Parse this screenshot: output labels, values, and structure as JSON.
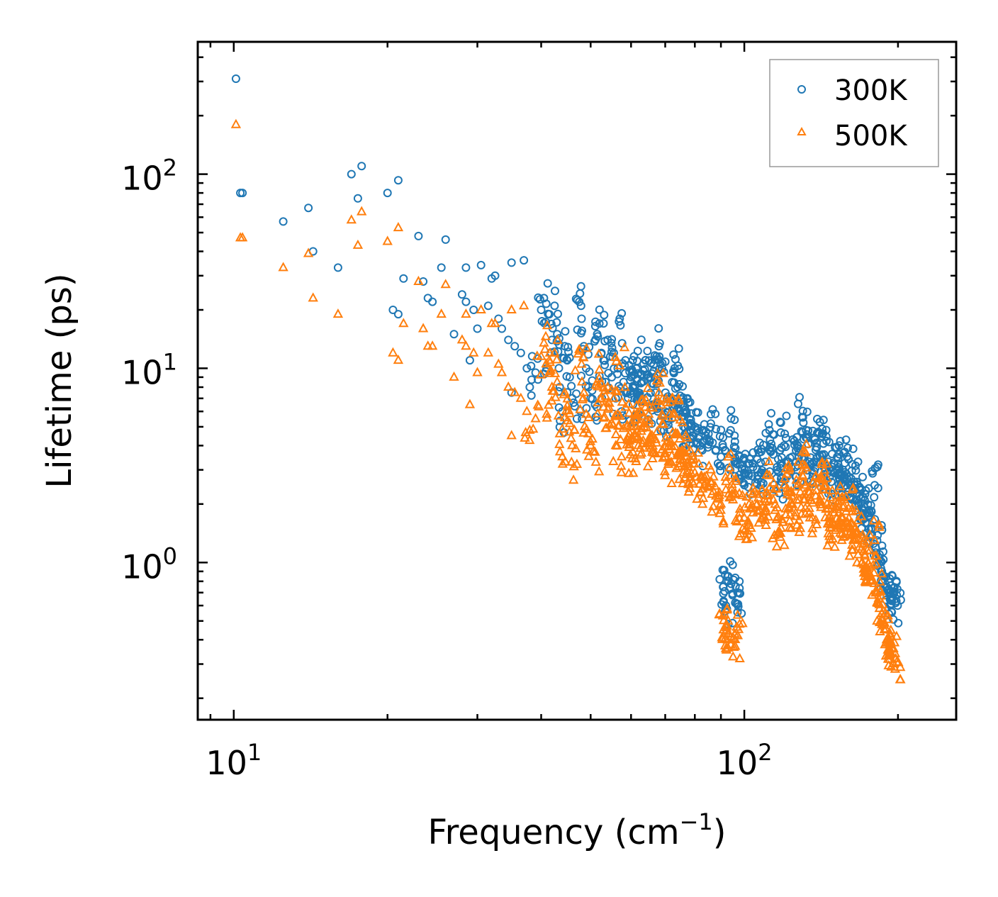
{
  "chart_data": {
    "type": "scatter",
    "xscale": "log",
    "yscale": "log",
    "xlim": [
      8.5,
      260
    ],
    "ylim": [
      0.155,
      480
    ],
    "xlabel": "Frequency (cm",
    "xlabel_sup": "−1",
    "xlabel_close": ")",
    "ylabel": "Lifetime (ps)",
    "x_ticks": [
      {
        "value": 10,
        "base": "10",
        "exp": "1"
      },
      {
        "value": 100,
        "base": "10",
        "exp": "2"
      }
    ],
    "y_ticks": [
      {
        "value": 1,
        "base": "10",
        "exp": "0"
      },
      {
        "value": 10,
        "base": "10",
        "exp": "1"
      },
      {
        "value": 100,
        "base": "10",
        "exp": "2"
      }
    ],
    "legend_position": "top-right",
    "series": [
      {
        "name": "300K",
        "marker": "circle",
        "color": "#1f77b4",
        "points": [
          [
            10.1,
            310
          ],
          [
            10.3,
            80
          ],
          [
            10.4,
            80
          ],
          [
            12.5,
            57
          ],
          [
            14,
            67
          ],
          [
            14.3,
            40
          ],
          [
            16,
            33
          ],
          [
            17,
            100
          ],
          [
            17.5,
            75
          ],
          [
            17.8,
            110
          ],
          [
            20,
            80
          ],
          [
            20.5,
            20
          ],
          [
            21,
            93
          ],
          [
            21,
            19
          ],
          [
            21.5,
            29
          ],
          [
            23,
            48
          ],
          [
            23.5,
            28
          ],
          [
            24,
            23
          ],
          [
            24.5,
            22
          ],
          [
            25.5,
            33
          ],
          [
            26,
            46
          ],
          [
            27,
            15
          ],
          [
            28,
            24
          ],
          [
            28.5,
            22
          ],
          [
            28.5,
            33
          ],
          [
            29,
            11
          ],
          [
            29.5,
            20
          ],
          [
            30,
            16
          ],
          [
            30.5,
            34
          ],
          [
            31.5,
            21
          ],
          [
            32,
            29
          ],
          [
            32.5,
            30
          ],
          [
            33,
            18
          ],
          [
            33.5,
            16
          ],
          [
            34.5,
            14
          ],
          [
            35,
            35
          ],
          [
            35,
            7.5
          ],
          [
            35.5,
            13
          ],
          [
            36.5,
            12
          ],
          [
            37,
            36
          ],
          [
            37.5,
            10
          ],
          [
            38,
            8
          ],
          [
            39,
            9.5
          ],
          [
            40,
            20
          ],
          [
            40.5,
            23
          ],
          [
            41,
            10
          ],
          [
            41.5,
            19
          ],
          [
            42,
            14
          ],
          [
            42.5,
            21
          ],
          [
            43,
            15
          ],
          [
            43.5,
            8
          ],
          [
            44,
            6
          ],
          [
            44.5,
            13
          ],
          [
            45,
            11
          ],
          [
            45.5,
            9
          ],
          [
            46,
            7
          ],
          [
            47,
            5.5
          ],
          [
            47.5,
            22
          ],
          [
            48,
            18
          ],
          [
            48.5,
            13
          ],
          [
            49,
            10
          ],
          [
            49.5,
            8
          ],
          [
            50,
            7
          ],
          [
            51,
            6.5
          ],
          [
            51.5,
            15
          ],
          [
            52,
            17
          ],
          [
            52.5,
            12
          ],
          [
            53,
            11
          ],
          [
            53.5,
            8.5
          ],
          [
            54,
            14
          ],
          [
            55,
            9
          ],
          [
            55.5,
            12
          ],
          [
            56,
            7
          ],
          [
            56.5,
            10
          ],
          [
            57,
            18
          ],
          [
            57.5,
            6
          ],
          [
            58,
            8.5
          ],
          [
            58.5,
            11
          ],
          [
            59,
            7.5
          ],
          [
            60,
            9
          ],
          [
            60.5,
            6.5
          ],
          [
            61,
            8
          ],
          [
            61.5,
            10
          ],
          [
            62,
            7
          ],
          [
            63,
            8.5
          ],
          [
            64,
            11
          ],
          [
            65,
            9
          ],
          [
            66,
            6.5
          ],
          [
            67,
            7.5
          ],
          [
            68,
            13
          ],
          [
            69,
            10
          ],
          [
            70,
            6
          ],
          [
            71,
            5.5
          ],
          [
            72,
            7
          ],
          [
            73,
            10
          ],
          [
            74,
            8
          ],
          [
            75,
            6.5
          ],
          [
            76,
            5
          ],
          [
            77,
            6
          ],
          [
            78,
            5.5
          ],
          [
            79,
            4.5
          ],
          [
            80,
            5
          ],
          [
            82,
            4
          ],
          [
            84,
            4.5
          ],
          [
            86,
            5.2
          ],
          [
            88,
            3.8
          ],
          [
            90,
            3.5
          ],
          [
            91,
            0.75
          ],
          [
            92,
            0.6
          ],
          [
            93,
            0.85
          ],
          [
            94,
            4.8
          ],
          [
            95,
            3.7
          ],
          [
            96,
            0.62
          ],
          [
            97,
            0.7
          ],
          [
            98,
            3.2
          ],
          [
            100,
            2.9
          ],
          [
            102,
            2.8
          ],
          [
            104,
            3.1
          ],
          [
            106,
            3.4
          ],
          [
            108,
            2.9
          ],
          [
            110,
            3.3
          ],
          [
            112,
            4.8
          ],
          [
            114,
            3.6
          ],
          [
            116,
            3.0
          ],
          [
            118,
            2.7
          ],
          [
            120,
            4.6
          ],
          [
            122,
            3.3
          ],
          [
            124,
            3.5
          ],
          [
            126,
            3.1
          ],
          [
            128,
            3.7
          ],
          [
            130,
            5.6
          ],
          [
            132,
            4.4
          ],
          [
            134,
            3.3
          ],
          [
            136,
            2.9
          ],
          [
            138,
            3.8
          ],
          [
            140,
            4.6
          ],
          [
            142,
            4.6
          ],
          [
            144,
            3.0
          ],
          [
            146,
            3.3
          ],
          [
            148,
            2.6
          ],
          [
            150,
            3.2
          ],
          [
            152,
            3.5
          ],
          [
            154,
            2.8
          ],
          [
            156,
            3.0
          ],
          [
            158,
            2.5
          ],
          [
            160,
            3.4
          ],
          [
            162,
            2.7
          ],
          [
            164,
            2.4
          ],
          [
            166,
            2.6
          ],
          [
            168,
            2.2
          ],
          [
            170,
            1.9
          ],
          [
            172,
            2.1
          ],
          [
            174,
            1.6
          ],
          [
            176,
            1.8
          ],
          [
            178,
            1.5
          ],
          [
            180,
            2.5
          ],
          [
            182,
            1.3
          ],
          [
            184,
            1.1
          ],
          [
            186,
            0.9
          ],
          [
            188,
            0.85
          ],
          [
            190,
            0.75
          ],
          [
            192,
            0.7
          ],
          [
            194,
            0.65
          ],
          [
            196,
            0.7
          ],
          [
            198,
            0.62
          ]
        ]
      },
      {
        "name": "500K",
        "marker": "triangle",
        "color": "#ff7f0e",
        "points": [
          [
            10.1,
            180
          ],
          [
            10.3,
            47
          ],
          [
            10.4,
            47
          ],
          [
            12.5,
            33
          ],
          [
            14,
            39
          ],
          [
            14.3,
            23
          ],
          [
            16,
            19
          ],
          [
            17,
            58
          ],
          [
            17.5,
            43
          ],
          [
            17.8,
            64
          ],
          [
            20,
            45
          ],
          [
            20.5,
            12
          ],
          [
            21,
            53
          ],
          [
            21,
            11
          ],
          [
            21.5,
            17
          ],
          [
            23,
            28
          ],
          [
            23.5,
            16
          ],
          [
            24,
            13
          ],
          [
            24.5,
            13
          ],
          [
            25.5,
            19
          ],
          [
            26,
            27
          ],
          [
            27,
            9
          ],
          [
            28,
            14
          ],
          [
            28.5,
            13
          ],
          [
            28.5,
            19
          ],
          [
            29,
            6.5
          ],
          [
            29.5,
            12
          ],
          [
            30,
            9.5
          ],
          [
            30.5,
            20
          ],
          [
            31.5,
            12
          ],
          [
            32,
            17
          ],
          [
            32.5,
            17
          ],
          [
            33,
            10.5
          ],
          [
            33.5,
            9.5
          ],
          [
            34.5,
            8
          ],
          [
            35,
            20
          ],
          [
            35,
            4.5
          ],
          [
            35.5,
            7.5
          ],
          [
            36.5,
            7
          ],
          [
            37,
            21
          ],
          [
            37.5,
            6
          ],
          [
            38,
            4.8
          ],
          [
            39,
            5.5
          ],
          [
            40,
            11.5
          ],
          [
            40.5,
            13.5
          ],
          [
            41,
            5.8
          ],
          [
            41.5,
            11
          ],
          [
            42,
            8
          ],
          [
            42.5,
            12
          ],
          [
            43,
            8.5
          ],
          [
            43.5,
            4.6
          ],
          [
            44,
            3.5
          ],
          [
            44.5,
            7.5
          ],
          [
            45,
            6.4
          ],
          [
            45.5,
            5.2
          ],
          [
            46,
            4
          ],
          [
            47,
            3.2
          ],
          [
            47.5,
            12.5
          ],
          [
            48,
            10.5
          ],
          [
            48.5,
            7.5
          ],
          [
            49,
            5.8
          ],
          [
            49.5,
            4.6
          ],
          [
            50,
            4
          ],
          [
            51,
            3.7
          ],
          [
            51.5,
            8.5
          ],
          [
            52,
            9.8
          ],
          [
            52.5,
            7
          ],
          [
            53,
            6.3
          ],
          [
            53.5,
            4.9
          ],
          [
            54,
            8
          ],
          [
            55,
            5.2
          ],
          [
            55.5,
            7
          ],
          [
            56,
            4
          ],
          [
            56.5,
            5.8
          ],
          [
            57,
            10.3
          ],
          [
            57.5,
            3.5
          ],
          [
            58,
            4.9
          ],
          [
            58.5,
            6.3
          ],
          [
            59,
            4.3
          ],
          [
            60,
            5.2
          ],
          [
            60.5,
            3.7
          ],
          [
            61,
            4.6
          ],
          [
            61.5,
            5.8
          ],
          [
            62,
            4
          ],
          [
            63,
            4.9
          ],
          [
            64,
            6.3
          ],
          [
            65,
            5.2
          ],
          [
            66,
            3.7
          ],
          [
            67,
            4.3
          ],
          [
            68,
            7.5
          ],
          [
            69,
            5.8
          ],
          [
            70,
            3.5
          ],
          [
            71,
            3.2
          ],
          [
            72,
            4
          ],
          [
            73,
            5.8
          ],
          [
            74,
            4.6
          ],
          [
            75,
            3.7
          ],
          [
            76,
            2.9
          ],
          [
            77,
            3.5
          ],
          [
            78,
            3.2
          ],
          [
            79,
            2.6
          ],
          [
            80,
            2.9
          ],
          [
            82,
            2.3
          ],
          [
            84,
            2.6
          ],
          [
            86,
            3.0
          ],
          [
            88,
            2.2
          ],
          [
            90,
            2.0
          ],
          [
            91,
            0.45
          ],
          [
            92,
            0.36
          ],
          [
            93,
            0.5
          ],
          [
            94,
            2.8
          ],
          [
            95,
            2.1
          ],
          [
            96,
            0.37
          ],
          [
            97,
            0.42
          ],
          [
            98,
            1.8
          ],
          [
            100,
            1.7
          ],
          [
            102,
            1.6
          ],
          [
            104,
            1.8
          ],
          [
            106,
            2.0
          ],
          [
            108,
            1.7
          ],
          [
            110,
            1.9
          ],
          [
            112,
            2.8
          ],
          [
            114,
            2.1
          ],
          [
            116,
            1.7
          ],
          [
            118,
            1.5
          ],
          [
            120,
            2.7
          ],
          [
            122,
            1.9
          ],
          [
            124,
            2.0
          ],
          [
            126,
            1.8
          ],
          [
            128,
            2.1
          ],
          [
            130,
            3.2
          ],
          [
            132,
            2.5
          ],
          [
            134,
            1.9
          ],
          [
            136,
            1.7
          ],
          [
            138,
            2.2
          ],
          [
            140,
            2.7
          ],
          [
            142,
            2.7
          ],
          [
            144,
            1.7
          ],
          [
            146,
            1.9
          ],
          [
            148,
            1.5
          ],
          [
            150,
            1.8
          ],
          [
            152,
            2.0
          ],
          [
            154,
            1.6
          ],
          [
            156,
            1.7
          ],
          [
            158,
            1.4
          ],
          [
            160,
            1.9
          ],
          [
            162,
            1.5
          ],
          [
            164,
            1.3
          ],
          [
            166,
            1.4
          ],
          [
            168,
            1.2
          ],
          [
            170,
            1.0
          ],
          [
            172,
            1.1
          ],
          [
            174,
            0.85
          ],
          [
            176,
            0.95
          ],
          [
            178,
            0.8
          ],
          [
            180,
            1.3
          ],
          [
            182,
            0.7
          ],
          [
            184,
            0.58
          ],
          [
            186,
            0.48
          ],
          [
            188,
            0.45
          ],
          [
            190,
            0.4
          ],
          [
            192,
            0.36
          ],
          [
            194,
            0.34
          ],
          [
            196,
            0.36
          ],
          [
            198,
            0.32
          ]
        ]
      }
    ]
  }
}
